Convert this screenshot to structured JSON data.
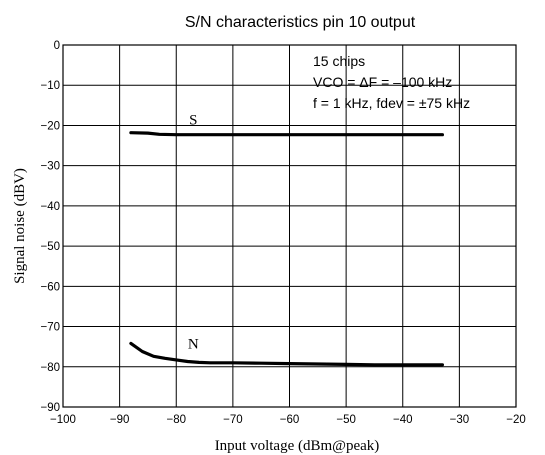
{
  "chart_data": {
    "type": "line",
    "title": "S/N characteristics  pin 10 output",
    "xlabel": "Input voltage (dBm@peak)",
    "ylabel": "Signal noise (dBV)",
    "xlim": [
      -100,
      -20
    ],
    "ylim": [
      -90,
      0
    ],
    "xticks": [
      -100,
      -90,
      -80,
      -70,
      -60,
      -50,
      -40,
      -30,
      -20
    ],
    "yticks": [
      0,
      -10,
      -20,
      -30,
      -40,
      -50,
      -60,
      -70,
      -80,
      -90
    ],
    "grid": true,
    "annotation": [
      "15 chips",
      "VCO = ΔF = –100 kHz",
      "f = 1 kHz, fdev = ±75 kHz"
    ],
    "series": [
      {
        "name": "S",
        "x": [
          -88,
          -85,
          -83,
          -80,
          -75,
          -70,
          -60,
          -50,
          -40,
          -33
        ],
        "y": [
          -21.8,
          -21.9,
          -22.2,
          -22.3,
          -22.3,
          -22.3,
          -22.3,
          -22.3,
          -22.3,
          -22.3
        ]
      },
      {
        "name": "N",
        "x": [
          -88,
          -86,
          -84,
          -82,
          -80,
          -78,
          -76,
          -74,
          -72,
          -70,
          -65,
          -60,
          -55,
          -50,
          -45,
          -40,
          -35,
          -33
        ],
        "y": [
          -74.2,
          -76.2,
          -77.4,
          -77.9,
          -78.3,
          -78.7,
          -78.9,
          -79.0,
          -79.0,
          -79.0,
          -79.1,
          -79.2,
          -79.3,
          -79.4,
          -79.5,
          -79.5,
          -79.5,
          -79.5
        ]
      }
    ]
  }
}
